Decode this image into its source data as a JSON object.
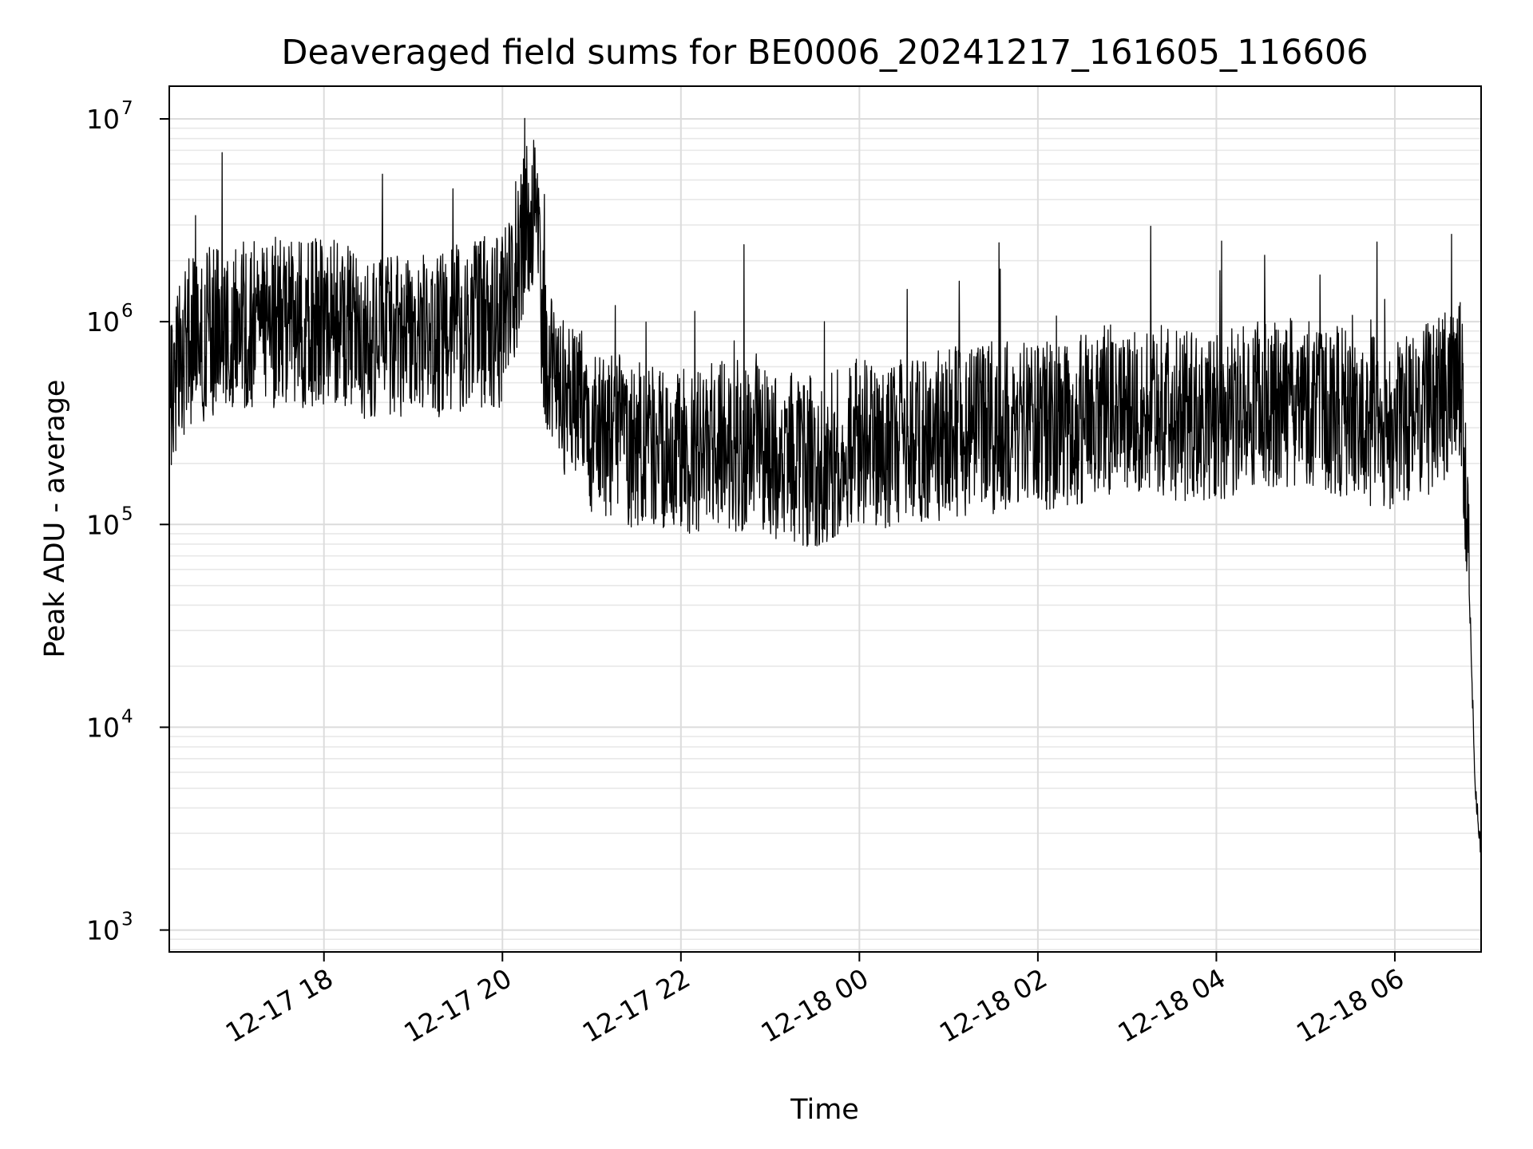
{
  "chart_data": {
    "type": "line",
    "title": "Deaveraged field sums for BE0006_20241217_161605_116606",
    "xlabel": "Time",
    "ylabel": "Peak ADU - average",
    "yscale": "log",
    "ylim": [
      780,
      14500000
    ],
    "xlim": [
      "2024-12-17 16:16",
      "2024-12-18 06:58"
    ],
    "grid": true,
    "x_ticks": [
      {
        "value": "2024-12-17 18:00",
        "label": "12-17 18"
      },
      {
        "value": "2024-12-17 20:00",
        "label": "12-17 20"
      },
      {
        "value": "2024-12-17 22:00",
        "label": "12-17 22"
      },
      {
        "value": "2024-12-18 00:00",
        "label": "12-18 00"
      },
      {
        "value": "2024-12-18 02:00",
        "label": "12-18 02"
      },
      {
        "value": "2024-12-18 04:00",
        "label": "12-18 04"
      },
      {
        "value": "2024-12-18 06:00",
        "label": "12-18 06"
      }
    ],
    "y_ticks": [
      {
        "value": 1000,
        "base": "10",
        "exp": "3"
      },
      {
        "value": 10000,
        "base": "10",
        "exp": "4"
      },
      {
        "value": 100000,
        "base": "10",
        "exp": "5"
      },
      {
        "value": 1000000,
        "base": "10",
        "exp": "6"
      },
      {
        "value": 10000000,
        "base": "10",
        "exp": "7"
      }
    ],
    "series": [
      {
        "color": "#000000",
        "x": [
          "2024-12-17 16:16",
          "2024-12-17 16:30",
          "2024-12-17 17:00",
          "2024-12-17 17:30",
          "2024-12-17 18:00",
          "2024-12-17 18:30",
          "2024-12-17 19:00",
          "2024-12-17 19:30",
          "2024-12-17 19:45",
          "2024-12-17 20:00",
          "2024-12-17 20:10",
          "2024-12-17 20:20",
          "2024-12-17 20:30",
          "2024-12-17 20:45",
          "2024-12-17 21:00",
          "2024-12-17 21:30",
          "2024-12-17 22:00",
          "2024-12-17 22:30",
          "2024-12-17 23:00",
          "2024-12-17 23:30",
          "2024-12-18 00:00",
          "2024-12-18 00:30",
          "2024-12-18 01:00",
          "2024-12-18 01:30",
          "2024-12-18 02:00",
          "2024-12-18 02:30",
          "2024-12-18 03:00",
          "2024-12-18 03:30",
          "2024-12-18 04:00",
          "2024-12-18 04:30",
          "2024-12-18 05:00",
          "2024-12-18 05:30",
          "2024-12-18 06:00",
          "2024-12-18 06:30",
          "2024-12-18 06:45",
          "2024-12-18 06:50",
          "2024-12-18 06:54",
          "2024-12-18 06:58"
        ],
        "values": [
          400000,
          800000,
          1000000,
          1000000,
          1000000,
          800000,
          900000,
          900000,
          1000000,
          1000000,
          2000000,
          4000000,
          600000,
          400000,
          300000,
          250000,
          220000,
          250000,
          230000,
          200000,
          250000,
          250000,
          280000,
          300000,
          300000,
          330000,
          400000,
          350000,
          330000,
          400000,
          400000,
          350000,
          300000,
          400000,
          500000,
          50000,
          5000,
          2500
        ]
      }
    ]
  }
}
